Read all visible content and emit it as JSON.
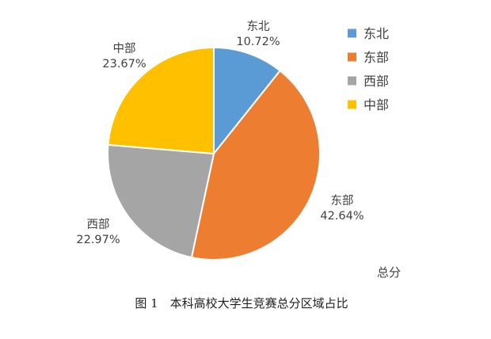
{
  "chart_data": {
    "type": "pie",
    "categories": [
      "东北",
      "东部",
      "西部",
      "中部"
    ],
    "values": [
      10.72,
      42.64,
      22.97,
      23.67
    ],
    "value_labels": [
      "10.72%",
      "42.64%",
      "22.97%",
      "23.67%"
    ],
    "colors": [
      "#5b9bd5",
      "#ed7d31",
      "#a5a5a5",
      "#ffc000"
    ],
    "series_label": "总分",
    "legend_position": "top-right",
    "start_angle_deg": 0,
    "direction": "clockwise"
  },
  "figure": {
    "caption": "图 1　本科高校大学生竞赛总分区域占比"
  }
}
